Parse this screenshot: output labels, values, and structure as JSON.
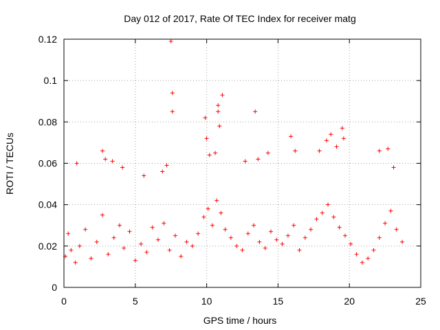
{
  "chart_data": {
    "type": "scatter",
    "title": "Day 012 of 2017, Rate Of TEC Index for receiver matg",
    "xlabel": "GPS time / hours",
    "ylabel": "ROTI / TECUs",
    "xlim": [
      0,
      25
    ],
    "ylim": [
      0,
      0.12
    ],
    "x_ticks": [
      0,
      5,
      10,
      15,
      20,
      25
    ],
    "x_tick_labels": [
      "0",
      "5",
      "10",
      "15",
      "20",
      "25"
    ],
    "y_ticks": [
      0,
      0.02,
      0.04,
      0.06,
      0.08,
      0.1,
      0.12
    ],
    "y_tick_labels": [
      "0",
      "0.02",
      "0.04",
      "0.06",
      "0.08",
      "0.1",
      "0.12"
    ],
    "grid": true,
    "marker": "plus",
    "color": "#ff0000",
    "series": [
      {
        "name": "ROTI",
        "x": [
          0.1,
          0.3,
          0.5,
          0.8,
          1.1,
          1.5,
          1.9,
          2.3,
          2.7,
          3.1,
          3.5,
          3.9,
          4.2,
          4.6,
          5.0,
          5.4,
          5.8,
          6.2,
          6.6,
          7.0,
          7.4,
          7.8,
          8.2,
          8.6,
          9.0,
          9.4,
          9.8,
          10.1,
          10.4,
          10.7,
          11.0,
          11.3,
          11.7,
          12.1,
          12.5,
          12.9,
          13.3,
          13.7,
          14.1,
          14.5,
          14.9,
          15.3,
          15.7,
          16.1,
          16.5,
          16.9,
          17.3,
          17.7,
          18.1,
          18.5,
          18.9,
          19.3,
          19.7,
          20.1,
          20.5,
          20.9,
          21.3,
          21.7,
          22.1,
          22.5,
          22.9,
          23.3,
          23.7,
          0.9,
          2.7,
          2.9,
          3.4,
          4.1,
          5.6,
          6.9,
          7.2,
          7.5,
          7.6,
          7.6,
          9.9,
          10.0,
          10.2,
          10.6,
          10.8,
          10.8,
          10.9,
          11.1,
          12.7,
          13.4,
          13.6,
          14.3,
          15.9,
          16.2,
          17.9,
          18.4,
          18.7,
          19.1,
          19.5,
          19.6,
          22.1,
          22.7,
          23.1
        ],
        "y": [
          0.015,
          0.026,
          0.018,
          0.012,
          0.02,
          0.028,
          0.014,
          0.022,
          0.035,
          0.016,
          0.024,
          0.03,
          0.019,
          0.027,
          0.013,
          0.021,
          0.017,
          0.029,
          0.023,
          0.031,
          0.018,
          0.025,
          0.015,
          0.022,
          0.02,
          0.026,
          0.034,
          0.038,
          0.03,
          0.042,
          0.036,
          0.028,
          0.024,
          0.02,
          0.018,
          0.026,
          0.03,
          0.022,
          0.019,
          0.027,
          0.023,
          0.021,
          0.025,
          0.03,
          0.018,
          0.024,
          0.028,
          0.033,
          0.036,
          0.04,
          0.034,
          0.029,
          0.025,
          0.021,
          0.016,
          0.012,
          0.014,
          0.018,
          0.024,
          0.031,
          0.037,
          0.028,
          0.022,
          0.06,
          0.066,
          0.062,
          0.061,
          0.058,
          0.054,
          0.056,
          0.059,
          0.119,
          0.094,
          0.085,
          0.082,
          0.072,
          0.064,
          0.065,
          0.088,
          0.085,
          0.078,
          0.093,
          0.061,
          0.085,
          0.062,
          0.065,
          0.073,
          0.066,
          0.066,
          0.071,
          0.074,
          0.068,
          0.077,
          0.072,
          0.066,
          0.067,
          0.058
        ]
      }
    ]
  }
}
